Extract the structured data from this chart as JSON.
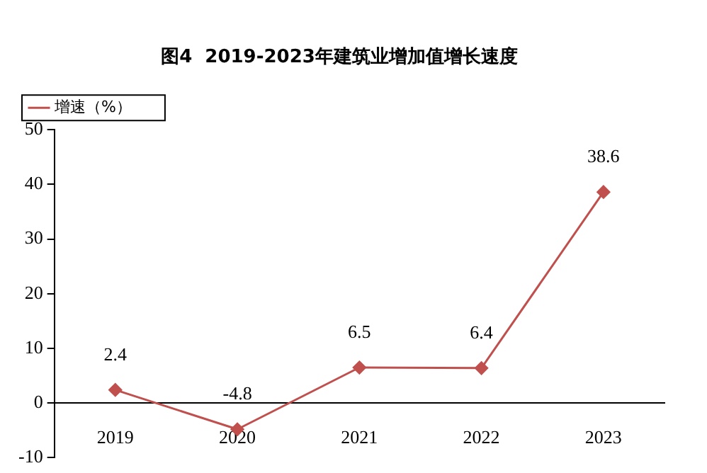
{
  "chart_data": {
    "type": "line",
    "title": "图4  2019-2023年建筑业增加值增长速度",
    "categories": [
      "2019",
      "2020",
      "2021",
      "2022",
      "2023"
    ],
    "series": [
      {
        "name": "增速（%）",
        "color": "#c0504d",
        "values": [
          2.4,
          -4.8,
          6.5,
          6.4,
          38.6
        ]
      }
    ],
    "ylim": [
      -10,
      50
    ],
    "yticks": [
      -10,
      0,
      10,
      20,
      30,
      40,
      50
    ],
    "grid": false,
    "legend": "top left",
    "marker": "diamond",
    "line_style": "solid",
    "data_labels": true
  }
}
